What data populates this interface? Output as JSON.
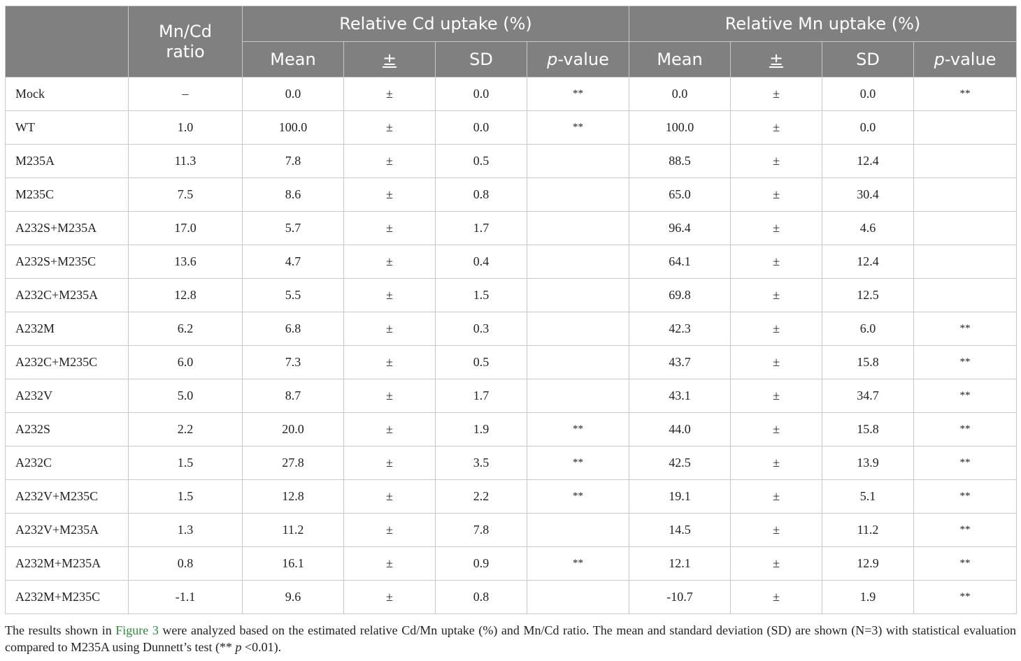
{
  "header": {
    "ratio_label": "Mn/Cd ratio",
    "cd_group": "Relative Cd uptake (%)",
    "mn_group": "Relative Mn uptake (%)",
    "mean": "Mean",
    "pm": "±",
    "sd": "SD",
    "p_letter": "p",
    "p_rest": "-value"
  },
  "rows": [
    {
      "label": "Mock",
      "ratio": "–",
      "cd_mean": "0.0",
      "cd_pm": "±",
      "cd_sd": "0.0",
      "cd_p": "**",
      "mn_mean": "0.0",
      "mn_pm": "±",
      "mn_sd": "0.0",
      "mn_p": "**"
    },
    {
      "label": "WT",
      "ratio": "1.0",
      "cd_mean": "100.0",
      "cd_pm": "±",
      "cd_sd": "0.0",
      "cd_p": "**",
      "mn_mean": "100.0",
      "mn_pm": "±",
      "mn_sd": "0.0",
      "mn_p": ""
    },
    {
      "label": "M235A",
      "ratio": "11.3",
      "cd_mean": "7.8",
      "cd_pm": "±",
      "cd_sd": "0.5",
      "cd_p": "",
      "mn_mean": "88.5",
      "mn_pm": "±",
      "mn_sd": "12.4",
      "mn_p": ""
    },
    {
      "label": "M235C",
      "ratio": "7.5",
      "cd_mean": "8.6",
      "cd_pm": "±",
      "cd_sd": "0.8",
      "cd_p": "",
      "mn_mean": "65.0",
      "mn_pm": "±",
      "mn_sd": "30.4",
      "mn_p": ""
    },
    {
      "label": "A232S+M235A",
      "ratio": "17.0",
      "cd_mean": "5.7",
      "cd_pm": "±",
      "cd_sd": "1.7",
      "cd_p": "",
      "mn_mean": "96.4",
      "mn_pm": "±",
      "mn_sd": "4.6",
      "mn_p": ""
    },
    {
      "label": "A232S+M235C",
      "ratio": "13.6",
      "cd_mean": "4.7",
      "cd_pm": "±",
      "cd_sd": "0.4",
      "cd_p": "",
      "mn_mean": "64.1",
      "mn_pm": "±",
      "mn_sd": "12.4",
      "mn_p": ""
    },
    {
      "label": "A232C+M235A",
      "ratio": "12.8",
      "cd_mean": "5.5",
      "cd_pm": "±",
      "cd_sd": "1.5",
      "cd_p": "",
      "mn_mean": "69.8",
      "mn_pm": "±",
      "mn_sd": "12.5",
      "mn_p": ""
    },
    {
      "label": "A232M",
      "ratio": "6.2",
      "cd_mean": "6.8",
      "cd_pm": "±",
      "cd_sd": "0.3",
      "cd_p": "",
      "mn_mean": "42.3",
      "mn_pm": "±",
      "mn_sd": "6.0",
      "mn_p": "**"
    },
    {
      "label": "A232C+M235C",
      "ratio": "6.0",
      "cd_mean": "7.3",
      "cd_pm": "±",
      "cd_sd": "0.5",
      "cd_p": "",
      "mn_mean": "43.7",
      "mn_pm": "±",
      "mn_sd": "15.8",
      "mn_p": "**"
    },
    {
      "label": "A232V",
      "ratio": "5.0",
      "cd_mean": "8.7",
      "cd_pm": "±",
      "cd_sd": "1.7",
      "cd_p": "",
      "mn_mean": "43.1",
      "mn_pm": "±",
      "mn_sd": "34.7",
      "mn_p": "**"
    },
    {
      "label": "A232S",
      "ratio": "2.2",
      "cd_mean": "20.0",
      "cd_pm": "±",
      "cd_sd": "1.9",
      "cd_p": "**",
      "mn_mean": "44.0",
      "mn_pm": "±",
      "mn_sd": "15.8",
      "mn_p": "**"
    },
    {
      "label": "A232C",
      "ratio": "1.5",
      "cd_mean": "27.8",
      "cd_pm": "±",
      "cd_sd": "3.5",
      "cd_p": "**",
      "mn_mean": "42.5",
      "mn_pm": "±",
      "mn_sd": "13.9",
      "mn_p": "**"
    },
    {
      "label": "A232V+M235C",
      "ratio": "1.5",
      "cd_mean": "12.8",
      "cd_pm": "±",
      "cd_sd": "2.2",
      "cd_p": "**",
      "mn_mean": "19.1",
      "mn_pm": "±",
      "mn_sd": "5.1",
      "mn_p": "**"
    },
    {
      "label": "A232V+M235A",
      "ratio": "1.3",
      "cd_mean": "11.2",
      "cd_pm": "±",
      "cd_sd": "7.8",
      "cd_p": "",
      "mn_mean": "14.5",
      "mn_pm": "±",
      "mn_sd": "11.2",
      "mn_p": "**"
    },
    {
      "label": "A232M+M235A",
      "ratio": "0.8",
      "cd_mean": "16.1",
      "cd_pm": "±",
      "cd_sd": "0.9",
      "cd_p": "**",
      "mn_mean": "12.1",
      "mn_pm": "±",
      "mn_sd": "12.9",
      "mn_p": "**"
    },
    {
      "label": "A232M+M235C",
      "ratio": "-1.1",
      "cd_mean": "9.6",
      "cd_pm": "±",
      "cd_sd": "0.8",
      "cd_p": "",
      "mn_mean": "-10.7",
      "mn_pm": "±",
      "mn_sd": "1.9",
      "mn_p": "**"
    }
  ],
  "caption": {
    "part1": "The results shown in ",
    "link": "Figure 3",
    "part2": " were analyzed based on the estimated relative Cd/Mn uptake (%) and Mn/Cd ratio. The mean and standard deviation (SD) are shown (N=3) with statistical evaluation compared to M235A using Dunnett’s test (** ",
    "p": "p",
    "part3": " <0.01)."
  }
}
